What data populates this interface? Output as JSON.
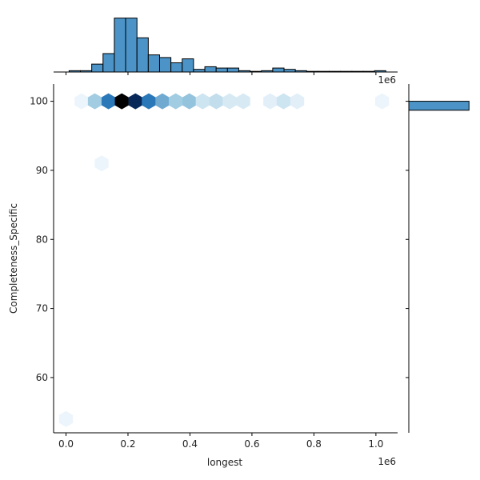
{
  "chart_data": {
    "type": "hexbin-jointplot",
    "xlabel": "longest",
    "ylabel": "Completeness_Specific",
    "x_offset_label": "1e6",
    "xlim": [
      -0.04,
      1.07
    ],
    "ylim": [
      52,
      102.5
    ],
    "x_ticks": [
      {
        "value": 0.0,
        "label": "0.0"
      },
      {
        "value": 0.2,
        "label": "0.2"
      },
      {
        "value": 0.4,
        "label": "0.4"
      },
      {
        "value": 0.6,
        "label": "0.6"
      },
      {
        "value": 0.8,
        "label": "0.8"
      },
      {
        "value": 1.0,
        "label": "1.0"
      }
    ],
    "y_ticks": [
      {
        "value": 60,
        "label": "60"
      },
      {
        "value": 70,
        "label": "70"
      },
      {
        "value": 80,
        "label": "80"
      },
      {
        "value": 90,
        "label": "90"
      },
      {
        "value": 100,
        "label": "100"
      }
    ],
    "colors": {
      "bar": "#4c94c7",
      "bar_edge": "#000000",
      "axis": "#000000",
      "hex_max": "#000000"
    },
    "hexbins": [
      {
        "x": 0.05,
        "y": 100,
        "count": 1
      },
      {
        "x": 0.093,
        "y": 100,
        "count": 8
      },
      {
        "x": 0.137,
        "y": 100,
        "count": 15
      },
      {
        "x": 0.18,
        "y": 100,
        "count": 24
      },
      {
        "x": 0.224,
        "y": 100,
        "count": 21
      },
      {
        "x": 0.267,
        "y": 100,
        "count": 15
      },
      {
        "x": 0.311,
        "y": 100,
        "count": 11
      },
      {
        "x": 0.354,
        "y": 100,
        "count": 8
      },
      {
        "x": 0.398,
        "y": 100,
        "count": 9
      },
      {
        "x": 0.441,
        "y": 100,
        "count": 4
      },
      {
        "x": 0.485,
        "y": 100,
        "count": 5
      },
      {
        "x": 0.528,
        "y": 100,
        "count": 3
      },
      {
        "x": 0.572,
        "y": 100,
        "count": 3
      },
      {
        "x": 0.659,
        "y": 100,
        "count": 2
      },
      {
        "x": 0.702,
        "y": 100,
        "count": 4
      },
      {
        "x": 0.746,
        "y": 100,
        "count": 2
      },
      {
        "x": 1.02,
        "y": 100,
        "count": 1
      },
      {
        "x": 0.115,
        "y": 91,
        "count": 1
      },
      {
        "x": 0.0,
        "y": 54,
        "count": 1
      }
    ],
    "x_hist": {
      "bin_width": 0.0365,
      "ymax": 45,
      "bins": [
        {
          "x": 0.01,
          "count": 1
        },
        {
          "x": 0.0465,
          "count": 1
        },
        {
          "x": 0.083,
          "count": 6
        },
        {
          "x": 0.1195,
          "count": 14
        },
        {
          "x": 0.156,
          "count": 41
        },
        {
          "x": 0.1925,
          "count": 41
        },
        {
          "x": 0.229,
          "count": 26
        },
        {
          "x": 0.2655,
          "count": 13
        },
        {
          "x": 0.302,
          "count": 11
        },
        {
          "x": 0.3385,
          "count": 7
        },
        {
          "x": 0.375,
          "count": 10
        },
        {
          "x": 0.4115,
          "count": 2
        },
        {
          "x": 0.448,
          "count": 4
        },
        {
          "x": 0.4845,
          "count": 3
        },
        {
          "x": 0.521,
          "count": 3
        },
        {
          "x": 0.5575,
          "count": 1
        },
        {
          "x": 0.594,
          "count": 0.5
        },
        {
          "x": 0.6305,
          "count": 1
        },
        {
          "x": 0.667,
          "count": 3
        },
        {
          "x": 0.7035,
          "count": 2
        },
        {
          "x": 0.74,
          "count": 1
        },
        {
          "x": 0.7765,
          "count": 0.5
        },
        {
          "x": 0.813,
          "count": 0.5
        },
        {
          "x": 0.8495,
          "count": 0.5
        },
        {
          "x": 0.886,
          "count": 0.5
        },
        {
          "x": 0.9225,
          "count": 0.5
        },
        {
          "x": 0.959,
          "count": 0.5
        },
        {
          "x": 0.9955,
          "count": 1
        }
      ]
    },
    "y_hist": {
      "xmax": 210,
      "bins": [
        {
          "y0": 98.7,
          "y1": 100,
          "count": 200
        }
      ]
    }
  }
}
